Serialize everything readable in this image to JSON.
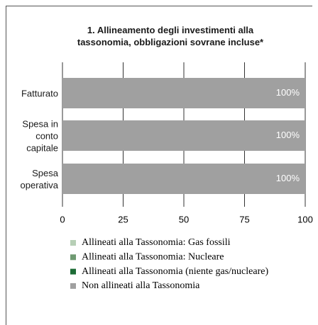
{
  "chart_data": {
    "type": "stacked-barh",
    "title": "1. Allineamento degli investimenti alla tassonomia, obbligazioni sovrane incluse*",
    "categories": [
      "Fatturato",
      "Spesa in conto capitale",
      "Spesa operativa"
    ],
    "series": [
      {
        "name": "Allineati alla Tassonomia: Gas fossili",
        "color": "#b7cfb6",
        "values": [
          0,
          0,
          0
        ]
      },
      {
        "name": "Allineati alla Tassonomia: Nucleare",
        "color": "#6f9a72",
        "values": [
          0,
          0,
          0
        ]
      },
      {
        "name": "Allineati alla Tassonomia (niente gas/nucleare)",
        "color": "#1d6b35",
        "values": [
          0,
          0,
          0
        ]
      },
      {
        "name": "Non allineati alla Tassonomia",
        "color": "#a0a0a0",
        "values": [
          100,
          100,
          100
        ],
        "value_labels": [
          "100%",
          "100%",
          "100%"
        ]
      }
    ],
    "xlim": [
      0,
      100
    ],
    "xticks": [
      0,
      25,
      50,
      75,
      100
    ],
    "grid": true
  }
}
